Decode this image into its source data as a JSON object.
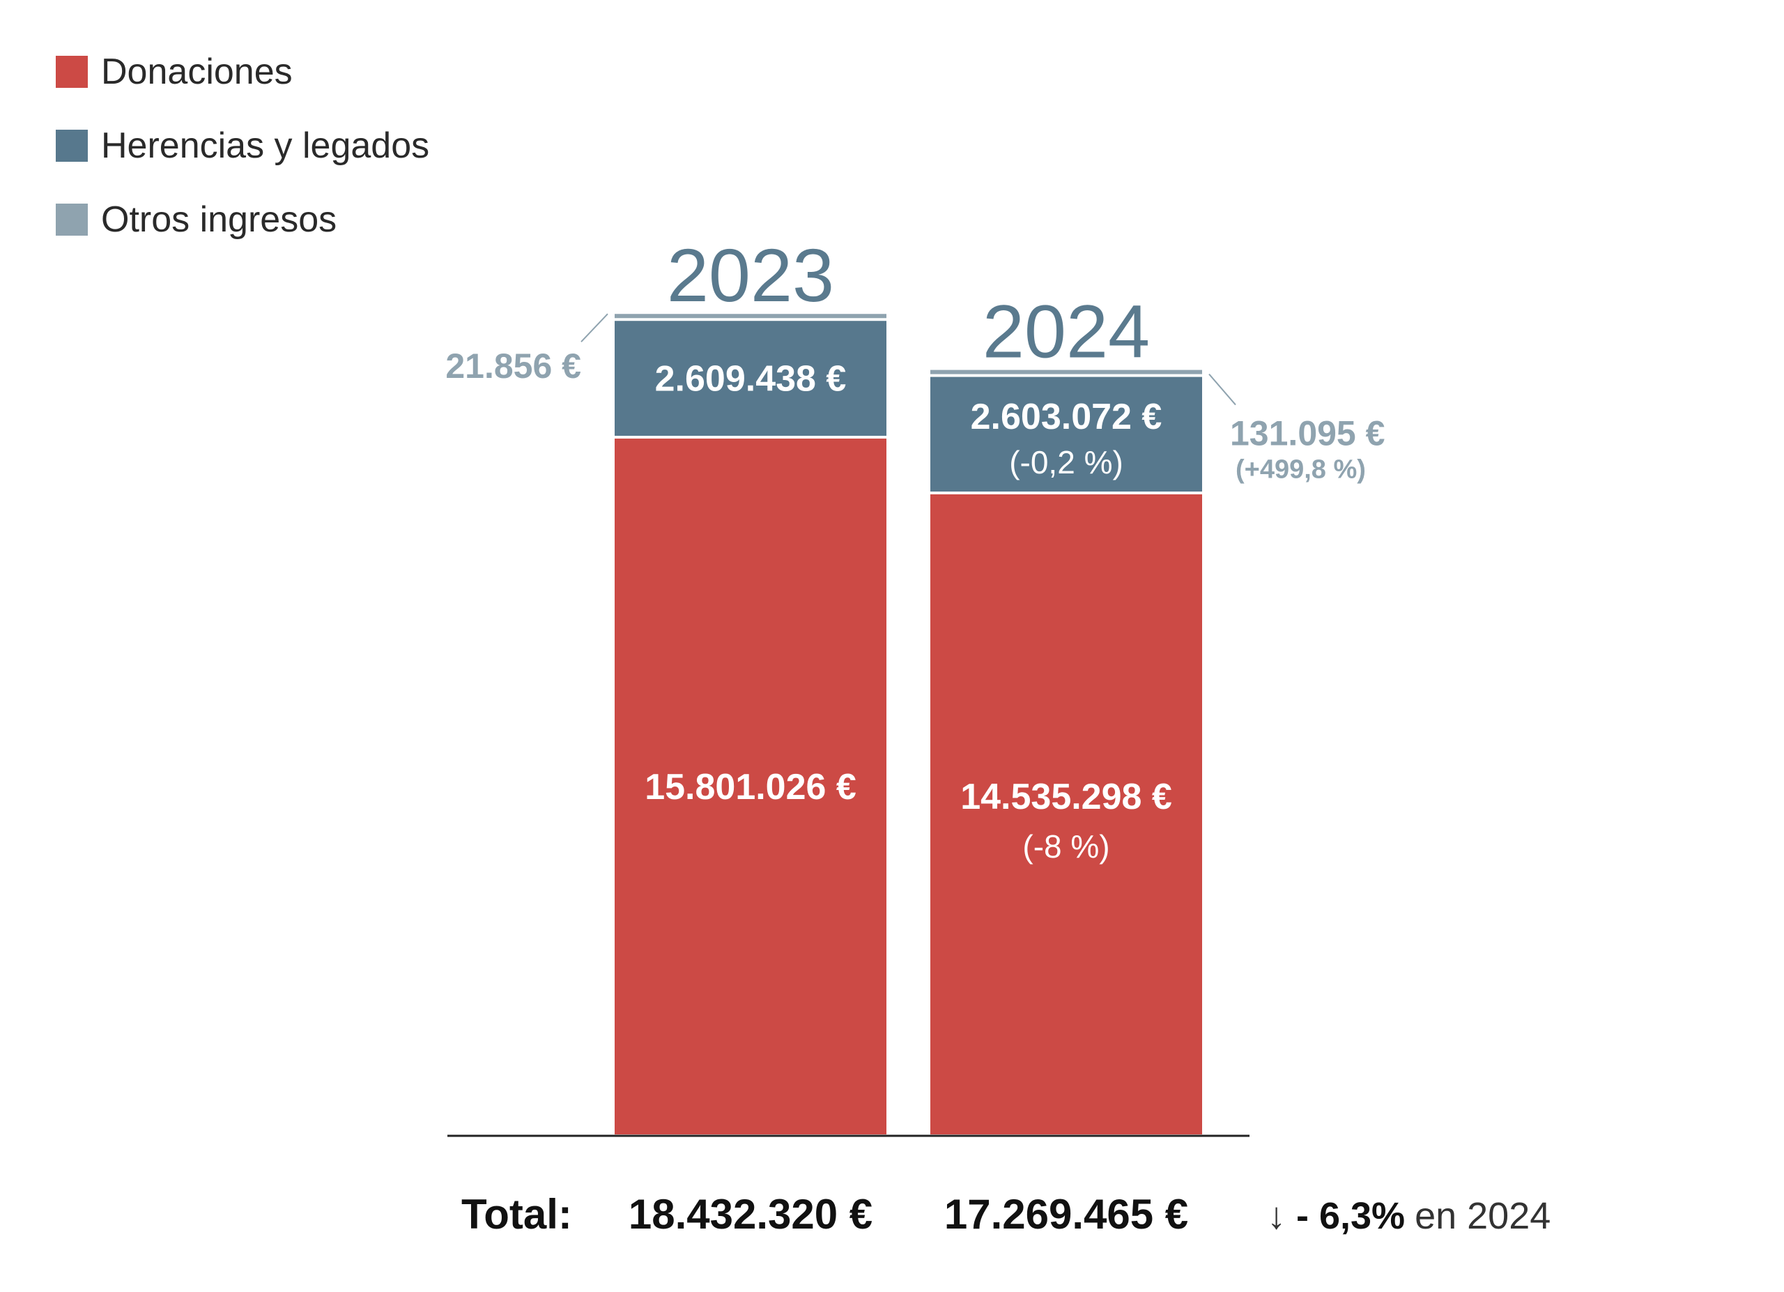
{
  "legend": [
    {
      "label": "Donaciones",
      "color": "#cc4a45"
    },
    {
      "label": "Herencias y legados",
      "color": "#57788d"
    },
    {
      "label": "Otros ingresos",
      "color": "#8fa3af"
    }
  ],
  "chart_data": {
    "type": "bar",
    "stacked": true,
    "categories": [
      "2023",
      "2024"
    ],
    "series": [
      {
        "name": "Donaciones",
        "values": [
          15801026,
          14535298
        ],
        "labels": [
          "15.801.026 €",
          "14.535.298 €"
        ],
        "changes": [
          "",
          "(-8 %)"
        ],
        "color": "#cc4a45"
      },
      {
        "name": "Herencias y legados",
        "values": [
          2609438,
          2603072
        ],
        "labels": [
          "2.609.438 €",
          "2.603.072 €"
        ],
        "changes": [
          "",
          "(-0,2 %)"
        ],
        "color": "#57788d"
      },
      {
        "name": "Otros ingresos",
        "values": [
          21856,
          131095
        ],
        "labels": [
          "21.856 €",
          "131.095 €"
        ],
        "changes": [
          "",
          "(+499,8 %)"
        ],
        "color": "#8fa3af"
      }
    ],
    "totals": {
      "label": "Total:",
      "values": [
        "18.432.320 €",
        "17.269.465 €"
      ]
    },
    "change_note": {
      "arrow": "↓",
      "value": "- 6,3%",
      "suffix": "en 2024"
    },
    "legend_position": "top-left",
    "grid": false
  }
}
